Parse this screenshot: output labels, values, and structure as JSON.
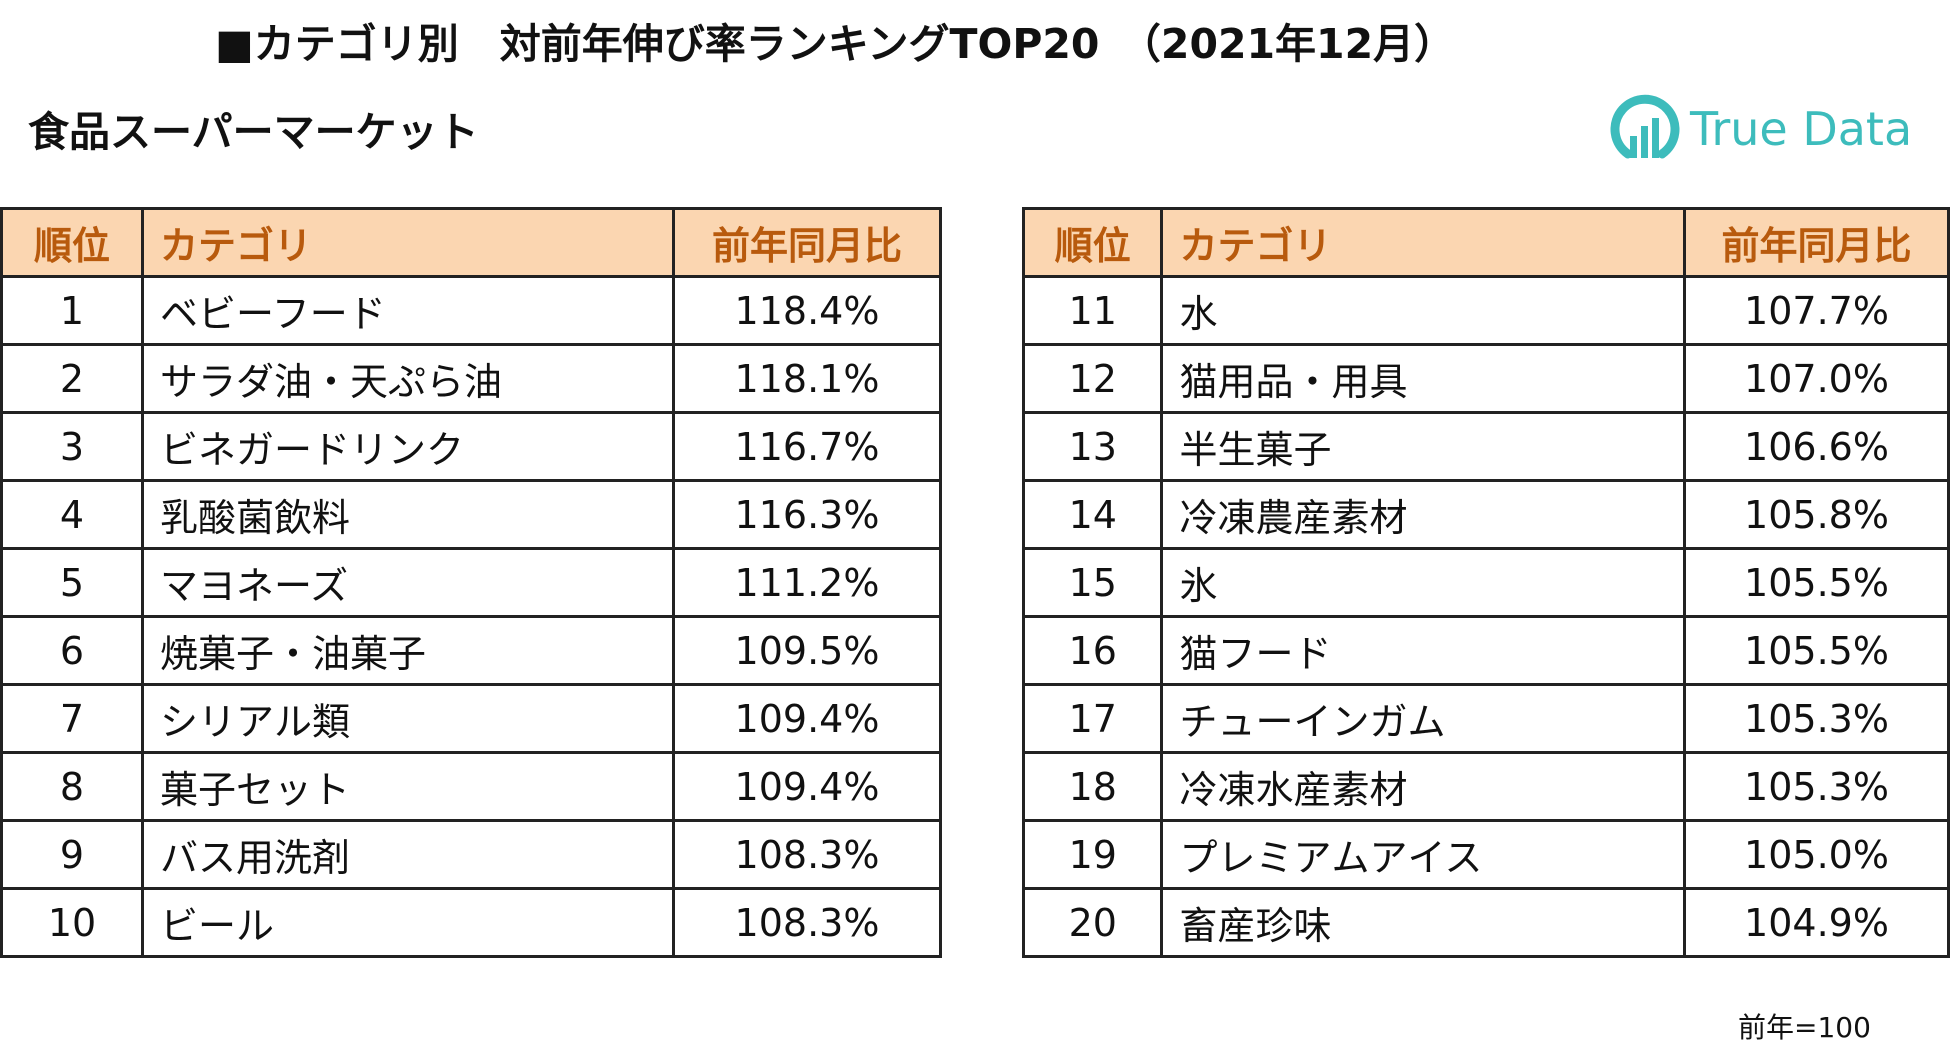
{
  "title": "■カテゴリ別　対前年伸び率ランキングTOP20　（2021年12月）",
  "subtitle": "食品スーパーマーケット",
  "logo": {
    "text": "True Data",
    "color": "#3dbcbc"
  },
  "table_headers": {
    "rank": "順位",
    "category": "カテゴリ",
    "ratio": "前年同月比"
  },
  "colors": {
    "header_bg": "#fbd6b1",
    "header_text": "#b85a0d",
    "border": "#222222"
  },
  "left_rows": [
    {
      "rank": "1",
      "category": "ベビーフード",
      "ratio": "118.4%"
    },
    {
      "rank": "2",
      "category": "サラダ油・天ぷら油",
      "ratio": "118.1%"
    },
    {
      "rank": "3",
      "category": "ビネガードリンク",
      "ratio": "116.7%"
    },
    {
      "rank": "4",
      "category": "乳酸菌飲料",
      "ratio": "116.3%"
    },
    {
      "rank": "5",
      "category": "マヨネーズ",
      "ratio": "111.2%"
    },
    {
      "rank": "6",
      "category": "焼菓子・油菓子",
      "ratio": "109.5%"
    },
    {
      "rank": "7",
      "category": "シリアル類",
      "ratio": "109.4%"
    },
    {
      "rank": "8",
      "category": "菓子セット",
      "ratio": "109.4%"
    },
    {
      "rank": "9",
      "category": "バス用洗剤",
      "ratio": "108.3%"
    },
    {
      "rank": "10",
      "category": "ビール",
      "ratio": "108.3%"
    }
  ],
  "right_rows": [
    {
      "rank": "11",
      "category": "水",
      "ratio": "107.7%"
    },
    {
      "rank": "12",
      "category": "猫用品・用具",
      "ratio": "107.0%"
    },
    {
      "rank": "13",
      "category": "半生菓子",
      "ratio": "106.6%"
    },
    {
      "rank": "14",
      "category": "冷凍農産素材",
      "ratio": "105.8%"
    },
    {
      "rank": "15",
      "category": "氷",
      "ratio": "105.5%"
    },
    {
      "rank": "16",
      "category": "猫フード",
      "ratio": "105.5%"
    },
    {
      "rank": "17",
      "category": "チューインガム",
      "ratio": "105.3%"
    },
    {
      "rank": "18",
      "category": "冷凍水産素材",
      "ratio": "105.3%"
    },
    {
      "rank": "19",
      "category": "プレミアムアイス",
      "ratio": "105.0%"
    },
    {
      "rank": "20",
      "category": "畜産珍味",
      "ratio": "104.9%"
    }
  ],
  "note": "前年=100"
}
